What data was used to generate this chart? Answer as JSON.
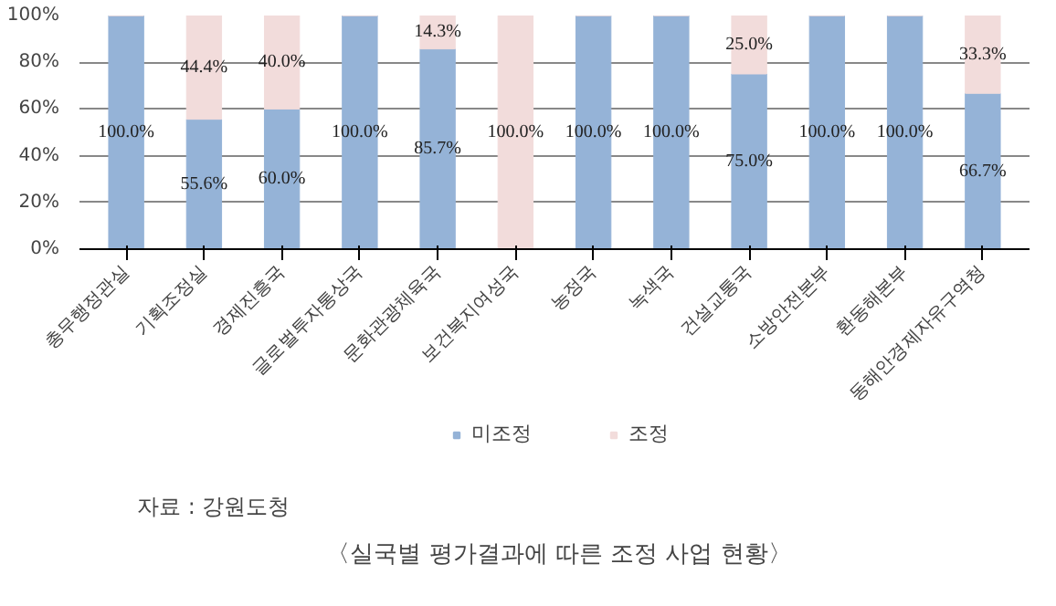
{
  "chart_data": {
    "type": "bar",
    "stacked": true,
    "title": "〈실국별 평가결과에 따른 조정 사업 현황〉",
    "annotations": [
      "자료 : 강원도청"
    ],
    "categories": [
      "총무행정관실",
      "기획조정실",
      "경제진흥국",
      "글로벌투자통상국",
      "문화관광체육국",
      "보건복지여성국",
      "농정국",
      "녹색국",
      "건설교통국",
      "소방안전본부",
      "환동해본부",
      "동해안경제자유구역청"
    ],
    "series": [
      {
        "name": "미조정",
        "color": "#95b3d7",
        "values": [
          100,
          55.6,
          60,
          100,
          85.7,
          0,
          100,
          100,
          75,
          100,
          100,
          66.7
        ],
        "value_labels": [
          "100.0%",
          "55.6%",
          "60.0%",
          "100.0%",
          "85.7%",
          null,
          "100.0%",
          "100.0%",
          "75.0%",
          "100.0%",
          "100.0%",
          "66.7%"
        ]
      },
      {
        "name": "조정",
        "color": "#f2dcdb",
        "values": [
          0,
          44.4,
          40,
          0,
          14.3,
          100,
          0,
          0,
          25,
          0,
          0,
          33.3
        ],
        "value_labels": [
          null,
          "44.4%",
          "40.0%",
          null,
          "14.3%",
          "100.0%",
          null,
          null,
          "25.0%",
          null,
          null,
          "33.3%"
        ]
      }
    ],
    "ylim": [
      0,
      100
    ],
    "yticks": [
      {
        "value": 0,
        "label": "0%"
      },
      {
        "value": 20,
        "label": "20%"
      },
      {
        "value": 40,
        "label": "40%"
      },
      {
        "value": 60,
        "label": "60%"
      },
      {
        "value": 80,
        "label": "80%"
      },
      {
        "value": 100,
        "label": "100%"
      }
    ],
    "grid": "y",
    "legend": "bottom"
  }
}
